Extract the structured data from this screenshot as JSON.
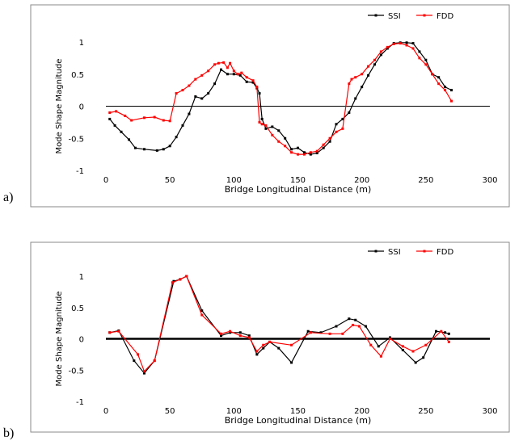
{
  "chart_data": [
    {
      "panel_label": "a)",
      "type": "line",
      "xlabel": "Bridge Longitudinal Distance (m)",
      "ylabel": "Mode Shape Magnitude",
      "xlim": [
        0,
        300
      ],
      "ylim": [
        -1,
        1
      ],
      "xticks": [
        "0",
        "50",
        "100",
        "150",
        "200",
        "250",
        "300"
      ],
      "yticks": [
        "-1",
        "-0.5",
        "0",
        "0.5",
        "1"
      ],
      "grid": false,
      "legend": "top-right",
      "series": [
        {
          "name": "SSI",
          "color": "#000000",
          "x": [
            3,
            7,
            12,
            18,
            23,
            30,
            40,
            45,
            50,
            55,
            60,
            65,
            70,
            75,
            80,
            85,
            90,
            95,
            100,
            105,
            110,
            115,
            118,
            120,
            122,
            125,
            130,
            135,
            140,
            145,
            150,
            155,
            160,
            165,
            170,
            175,
            180,
            185,
            190,
            195,
            200,
            205,
            210,
            215,
            220,
            225,
            230,
            235,
            240,
            245,
            250,
            255,
            260,
            265,
            270
          ],
          "y": [
            -0.2,
            -0.3,
            -0.4,
            -0.52,
            -0.65,
            -0.67,
            -0.69,
            -0.67,
            -0.62,
            -0.48,
            -0.3,
            -0.12,
            0.15,
            0.12,
            0.2,
            0.35,
            0.57,
            0.5,
            0.5,
            0.48,
            0.38,
            0.37,
            0.28,
            0.2,
            -0.2,
            -0.35,
            -0.32,
            -0.38,
            -0.5,
            -0.67,
            -0.65,
            -0.72,
            -0.75,
            -0.73,
            -0.65,
            -0.55,
            -0.28,
            -0.2,
            -0.1,
            0.12,
            0.3,
            0.48,
            0.65,
            0.8,
            0.9,
            0.98,
            0.99,
            0.99,
            0.98,
            0.85,
            0.72,
            0.5,
            0.45,
            0.3,
            0.25
          ]
        },
        {
          "name": "FDD",
          "color": "#ff0000",
          "x": [
            3,
            8,
            15,
            20,
            30,
            38,
            45,
            50,
            55,
            60,
            65,
            70,
            75,
            80,
            85,
            88,
            92,
            95,
            97,
            100,
            103,
            106,
            110,
            115,
            118,
            120,
            122,
            125,
            130,
            135,
            140,
            145,
            150,
            155,
            160,
            165,
            170,
            175,
            180,
            185,
            190,
            192,
            195,
            200,
            205,
            210,
            215,
            220,
            225,
            230,
            235,
            240,
            245,
            250,
            255,
            260,
            265,
            270
          ],
          "y": [
            -0.1,
            -0.08,
            -0.15,
            -0.22,
            -0.18,
            -0.17,
            -0.22,
            -0.23,
            0.2,
            0.25,
            0.32,
            0.42,
            0.48,
            0.55,
            0.65,
            0.67,
            0.68,
            0.6,
            0.67,
            0.55,
            0.5,
            0.52,
            0.45,
            0.4,
            0.3,
            -0.25,
            -0.28,
            -0.3,
            -0.45,
            -0.55,
            -0.62,
            -0.72,
            -0.75,
            -0.75,
            -0.72,
            -0.7,
            -0.6,
            -0.5,
            -0.4,
            -0.35,
            0.35,
            0.42,
            0.45,
            0.5,
            0.62,
            0.72,
            0.85,
            0.92,
            0.97,
            0.98,
            0.95,
            0.9,
            0.75,
            0.65,
            0.5,
            0.35,
            0.25,
            0.08
          ]
        }
      ]
    },
    {
      "panel_label": "b)",
      "type": "line",
      "xlabel": "Bridge Longitudinal Distance (m)",
      "ylabel": "Mode Shape Magnitude",
      "xlim": [
        0,
        300
      ],
      "ylim": [
        -1,
        1
      ],
      "xticks": [
        "0",
        "50",
        "100",
        "150",
        "200",
        "250",
        "300"
      ],
      "yticks": [
        "-1",
        "-0.5",
        "0",
        "0.5",
        "1"
      ],
      "grid": false,
      "legend": "top-right",
      "series": [
        {
          "name": "SSI",
          "color": "#000000",
          "x": [
            3,
            10,
            22,
            30,
            38,
            53,
            58,
            63,
            75,
            90,
            97,
            105,
            112,
            118,
            123,
            128,
            135,
            145,
            158,
            168,
            180,
            190,
            195,
            203,
            213,
            222,
            232,
            242,
            248,
            258,
            265,
            268
          ],
          "y": [
            0.1,
            0.13,
            -0.35,
            -0.55,
            -0.35,
            0.92,
            0.95,
            1.0,
            0.45,
            0.05,
            0.1,
            0.1,
            0.05,
            -0.25,
            -0.15,
            -0.05,
            -0.15,
            -0.38,
            0.12,
            0.1,
            0.2,
            0.32,
            0.3,
            0.2,
            -0.12,
            0.02,
            -0.18,
            -0.38,
            -0.3,
            0.12,
            0.1,
            0.08
          ]
        },
        {
          "name": "FDD",
          "color": "#ff0000",
          "x": [
            3,
            10,
            25,
            30,
            38,
            52,
            58,
            63,
            75,
            90,
            97,
            105,
            112,
            118,
            123,
            128,
            145,
            160,
            175,
            185,
            193,
            198,
            207,
            215,
            222,
            232,
            240,
            250,
            262,
            268
          ],
          "y": [
            0.1,
            0.12,
            -0.25,
            -0.52,
            -0.35,
            0.9,
            0.95,
            1.0,
            0.38,
            0.08,
            0.12,
            0.05,
            0.02,
            -0.2,
            -0.1,
            -0.05,
            -0.1,
            0.1,
            0.08,
            0.08,
            0.22,
            0.2,
            -0.1,
            -0.28,
            0.0,
            -0.12,
            -0.2,
            -0.1,
            0.12,
            -0.05
          ]
        }
      ]
    }
  ]
}
